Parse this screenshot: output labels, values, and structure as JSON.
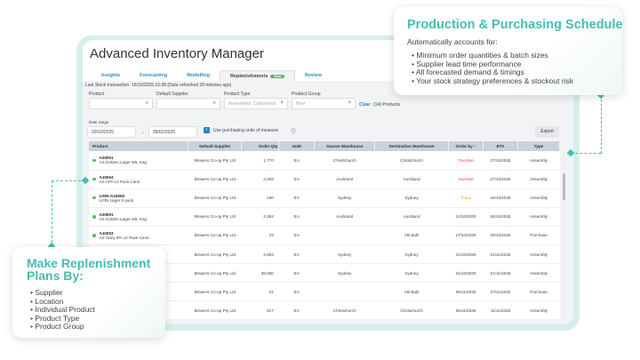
{
  "app": {
    "title": "Advanced Inventory Manager",
    "tabs": [
      {
        "label": "Insights"
      },
      {
        "label": "Forecasting"
      },
      {
        "label": "Modelling"
      },
      {
        "label": "Replenishments",
        "badge": "Beta"
      },
      {
        "label": "Review"
      }
    ],
    "last_transaction": "Last Stock transaction: 16/10/2025 16:38 (Data refreshed 39 minutes ago)",
    "filters": {
      "product_label": "Product",
      "supplier_label": "Default Supplier",
      "type_label": "Product Type",
      "type_value": "Assembled, Component",
      "group_label": "Product Group",
      "group_value": "Beer",
      "clear": "Clear",
      "count": "(14) Products"
    },
    "date_range": {
      "label": "Date range",
      "from": "20/10/2025",
      "arrow": "→",
      "to": "28/02/2026"
    },
    "uom_checkbox": {
      "label": "Use purchasing units of measure",
      "checked": true
    },
    "export": "Export",
    "columns": [
      "Product",
      "Default Supplier",
      "Order Qty.",
      "UoM",
      "Source Warehouse",
      "Destination Warehouse",
      "Order by ↑",
      "ETA",
      "Type"
    ],
    "rows": [
      {
        "code": "A20001",
        "name": "AS Golden Lager 50L Keg",
        "supplier": "Brewers Co-op Pty Ltd",
        "qty": "1,770",
        "uom": "EA",
        "src": "Christchurch",
        "dst": "Christchurch",
        "orderby": "Overdue",
        "status": "overdue",
        "eta": "27/10/2025",
        "type": "Assembly"
      },
      {
        "code": "A10004",
        "name": "AS APA 12 Pack Cans",
        "supplier": "Brewers Co-op Pty Ltd",
        "qty": "3,469",
        "uom": "EA",
        "src": "Auckland",
        "dst": "Auckland",
        "orderby": "Overdue",
        "status": "overdue",
        "eta": "27/10/2025",
        "type": "Assembly"
      },
      {
        "code": "LION-A10000",
        "name": "LION Lager 6 pack",
        "supplier": "Brewers Co-op Pty Ltd",
        "qty": "180",
        "uom": "EA",
        "src": "Sydney",
        "dst": "Sydney",
        "orderby": "Today",
        "status": "today",
        "eta": "24/10/2025",
        "type": "Assembly"
      },
      {
        "code": "A20001",
        "name": "AS Golden Lager 50L Keg",
        "supplier": "Brewers Co-op Pty Ltd",
        "qty": "2,092",
        "uom": "EA",
        "src": "Auckland",
        "dst": "Auckland",
        "orderby": "24/10/2025",
        "status": "",
        "eta": "26/10/2025",
        "type": "Assembly"
      },
      {
        "code": "A10003",
        "name": "AS Hazy IPA 12 Pack Cans",
        "supplier": "Brewers Co-op Pty Ltd",
        "qty": "23",
        "uom": "EA",
        "src": "",
        "dst": "Akl Bulk",
        "orderby": "27/10/2025",
        "status": "",
        "eta": "29/10/2025",
        "type": "Purchase"
      },
      {
        "code": "",
        "name": "",
        "supplier": "Brewers Co-op Pty Ltd",
        "qty": "3,653",
        "uom": "EA",
        "src": "Sydney",
        "dst": "Sydney",
        "orderby": "31/10/2025",
        "status": "",
        "eta": "01/11/2025",
        "type": "Assembly"
      },
      {
        "code": "",
        "name": "",
        "supplier": "Brewers Co-op Pty Ltd",
        "qty": "39,000",
        "uom": "EA",
        "src": "Sydney",
        "dst": "Sydney",
        "orderby": "31/10/2025",
        "status": "",
        "eta": "01/11/2025",
        "type": "Assembly"
      },
      {
        "code": "",
        "name": "",
        "supplier": "Brewers Co-op Pty Ltd",
        "qty": "24",
        "uom": "EA",
        "src": "",
        "dst": "Akl Bulk",
        "orderby": "05/11/2025",
        "status": "",
        "eta": "07/11/2025",
        "type": "Purchase"
      },
      {
        "code": "",
        "name": "",
        "supplier": "Brewers Co-op Pty Ltd",
        "qty": "617",
        "uom": "EA",
        "src": "Christchurch",
        "dst": "Christchurch",
        "orderby": "06/11/2025",
        "status": "",
        "eta": "11/11/2025",
        "type": "Assembly"
      }
    ]
  },
  "callout_right": {
    "title": "Production & Purchasing Schedule",
    "intro": "Automatically accounts for:",
    "items": [
      "Minimum order quantities & batch sizes",
      "Supplier lead time performance",
      "All forecasted demand & timings",
      "Your stock strategy preferences & stockout risk"
    ]
  },
  "callout_left": {
    "title": "Make Replenishment Plans By:",
    "items": [
      "Supplier",
      "Location",
      "Individual Product",
      "Product Type",
      "Product Group"
    ]
  },
  "colors": {
    "accent": "#46bdb0",
    "link": "#2a8fb8",
    "overdue": "#e5484d",
    "today": "#f0a030"
  }
}
